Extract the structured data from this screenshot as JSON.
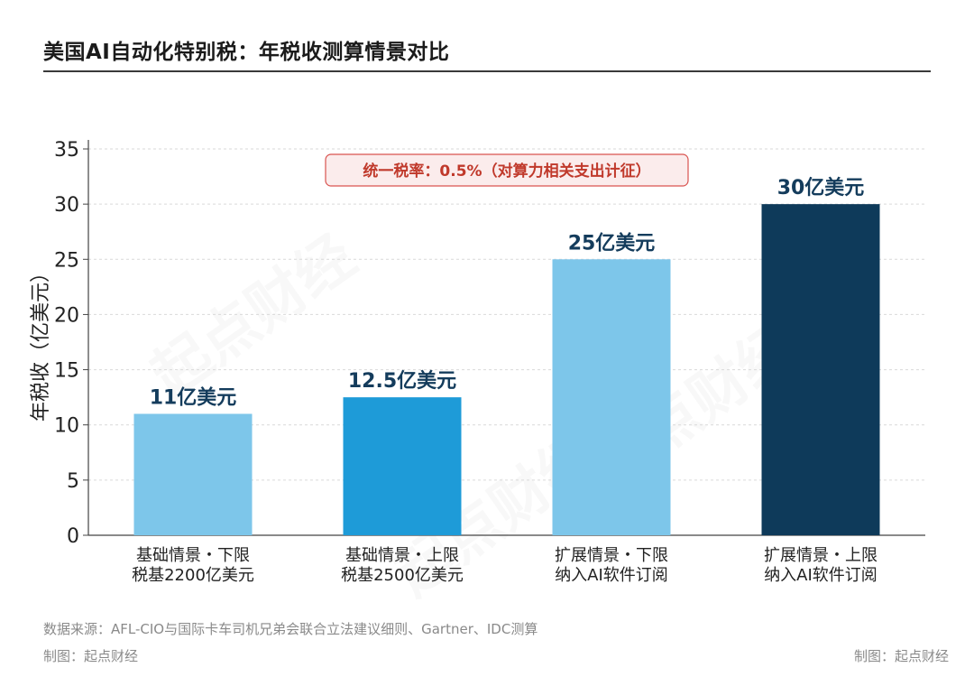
{
  "title": "美国AI自动化特别税：年税收测算情景对比",
  "annotation": "统一税率：0.5%（对算力相关支出计征）",
  "source": "数据来源：AFL-CIO与国际卡车司机兄弟会联合立法建议细则、Gartner、IDC测算",
  "credit_left": "制图：起点财经",
  "credit_right": "制图：起点财经",
  "watermark": "起点财经",
  "colors": {
    "bar1": "#7dc6ea",
    "bar2": "#1e9bd8",
    "bar3": "#7dc6ea",
    "bar4": "#0e3a5a",
    "label": "#143c5c",
    "annotation_red": "#c0392b"
  },
  "chart_data": {
    "type": "bar",
    "categories": [
      [
        "基础情景・下限",
        "税基2200亿美元"
      ],
      [
        "基础情景・上限",
        "税基2500亿美元"
      ],
      [
        "扩展情景・下限",
        "纳入AI软件订阅"
      ],
      [
        "扩展情景・上限",
        "纳入AI软件订阅"
      ]
    ],
    "values": [
      11,
      12.5,
      25,
      30
    ],
    "data_labels": [
      "11亿美元",
      "12.5亿美元",
      "25亿美元",
      "30亿美元"
    ],
    "ylabel": "年税收（亿美元）",
    "ylim": [
      0,
      35
    ],
    "yticks": [
      0,
      5,
      10,
      15,
      20,
      25,
      30,
      35
    ],
    "grid": true
  }
}
